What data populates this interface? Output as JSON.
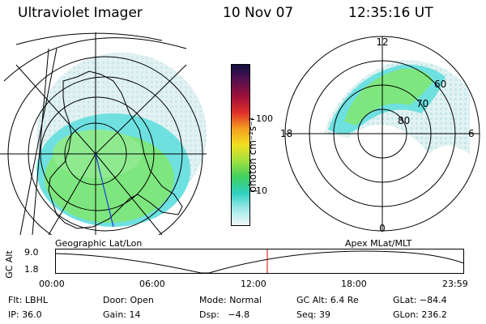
{
  "header": {
    "instrument": "Ultraviolet Imager",
    "date": "10 Nov 07",
    "time": "12:35:16 UT"
  },
  "colorbar": {
    "label": "photon cm⁻²s⁻¹",
    "ticks": [
      "100",
      "10"
    ],
    "scale": "log"
  },
  "left_panel": {
    "caption": "Geographic Lat/Lon"
  },
  "right_panel": {
    "caption": "Apex MLat/MLT",
    "clock_labels": {
      "top": "12",
      "bottom": "0",
      "left": "18",
      "right": "6"
    },
    "ring_labels": [
      "60",
      "70",
      "80"
    ]
  },
  "altitude_plot": {
    "ylabel": "GC Alt",
    "yticks": [
      "9.0",
      "1.8"
    ],
    "xticks": [
      "00:00",
      "06:00",
      "12:00",
      "18:00",
      "23:59"
    ],
    "current_time_marker": "12:35",
    "marker_color": "#cc0000"
  },
  "footer": {
    "rows": [
      [
        {
          "label": "Flt:",
          "value": "LBHL"
        },
        {
          "label": "Door:",
          "value": "Open"
        },
        {
          "label": "Mode:",
          "value": "Normal"
        },
        {
          "label": "GC Alt:",
          "value": "6.4 Re"
        },
        {
          "label": "GLat:",
          "value": "−84.4"
        }
      ],
      [
        {
          "label": "IP:",
          "value": "36.0"
        },
        {
          "label": "Gain:",
          "value": "14"
        },
        {
          "label": "Dsp:",
          "value": "−4.8"
        },
        {
          "label": "Seq:",
          "value": "39"
        },
        {
          "label": "GLon:",
          "value": "236.2"
        }
      ]
    ]
  }
}
